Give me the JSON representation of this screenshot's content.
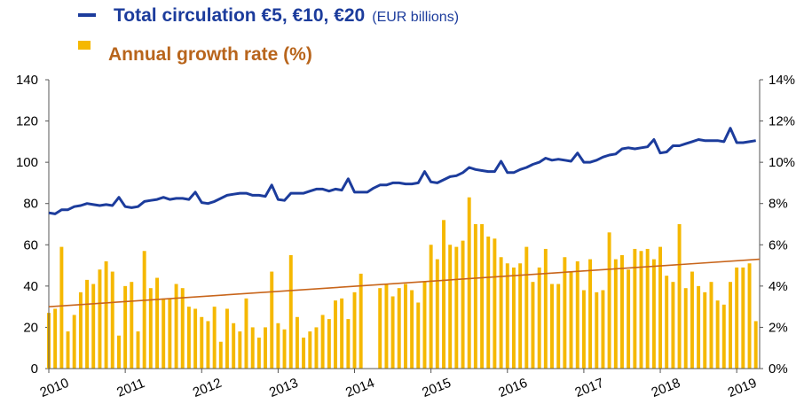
{
  "chart_data": {
    "type": "bar_line",
    "unit_note": "(EUR billions)",
    "x": [
      2010,
      2010.083,
      2010.167,
      2010.25,
      2010.333,
      2010.417,
      2010.5,
      2010.583,
      2010.667,
      2010.75,
      2010.833,
      2010.917,
      2011,
      2011.083,
      2011.167,
      2011.25,
      2011.333,
      2011.417,
      2011.5,
      2011.583,
      2011.667,
      2011.75,
      2011.833,
      2011.917,
      2012,
      2012.083,
      2012.167,
      2012.25,
      2012.333,
      2012.417,
      2012.5,
      2012.583,
      2012.667,
      2012.75,
      2012.833,
      2012.917,
      2013,
      2013.083,
      2013.167,
      2013.25,
      2013.333,
      2013.417,
      2013.5,
      2013.583,
      2013.667,
      2013.75,
      2013.833,
      2013.917,
      2014,
      2014.083,
      2014.167,
      2014.25,
      2014.333,
      2014.417,
      2014.5,
      2014.583,
      2014.667,
      2014.75,
      2014.833,
      2014.917,
      2015,
      2015.083,
      2015.167,
      2015.25,
      2015.333,
      2015.417,
      2015.5,
      2015.583,
      2015.667,
      2015.75,
      2015.833,
      2015.917,
      2016,
      2016.083,
      2016.167,
      2016.25,
      2016.333,
      2016.417,
      2016.5,
      2016.583,
      2016.667,
      2016.75,
      2016.833,
      2016.917,
      2017,
      2017.083,
      2017.167,
      2017.25,
      2017.333,
      2017.417,
      2017.5,
      2017.583,
      2017.667,
      2017.75,
      2017.833,
      2017.917,
      2018,
      2018.083,
      2018.167,
      2018.25,
      2018.333,
      2018.417,
      2018.5,
      2018.583,
      2018.667,
      2018.75,
      2018.833,
      2018.917,
      2019,
      2019.083,
      2019.167,
      2019.25
    ],
    "series": [
      {
        "name": "Total circulation €5, €10, €20",
        "color": "#1c3c9c",
        "kind": "line",
        "axis": "y",
        "values": [
          75.5,
          75,
          77,
          77,
          78.5,
          79,
          80,
          79.5,
          79,
          79.5,
          79,
          83,
          78.5,
          78,
          78.5,
          81,
          81.5,
          82,
          83,
          82,
          82.5,
          82.5,
          82,
          85.5,
          80.5,
          80,
          81,
          82.5,
          84,
          84.5,
          85,
          85,
          84,
          84,
          83.5,
          89,
          82,
          81.5,
          85,
          85,
          85,
          86,
          87,
          87,
          86,
          87,
          86.5,
          92,
          85.5,
          85.5,
          85.5,
          87.5,
          89,
          89,
          90,
          90,
          89.5,
          89.5,
          90,
          95.5,
          90.5,
          90,
          91.5,
          93,
          93.5,
          95,
          97.5,
          96.5,
          96,
          95.5,
          95.5,
          100.5,
          95,
          95,
          96.5,
          97.5,
          99,
          100,
          102,
          101,
          101.5,
          101,
          100.5,
          104.5,
          100,
          100,
          101,
          102.5,
          103.5,
          104,
          106.5,
          107,
          106.5,
          107,
          107.5,
          111,
          104.5,
          105,
          108,
          108,
          109,
          110,
          111,
          110.5,
          110.5,
          110.5,
          110,
          116.5,
          109.5,
          109.5,
          110,
          110.5
        ]
      },
      {
        "name": "Annual growth rate (%)",
        "color": "#f5b800",
        "label_color": "#b8651c",
        "kind": "bar",
        "axis": "y2",
        "values": [
          2.7,
          2.9,
          5.9,
          1.8,
          2.6,
          3.7,
          4.3,
          4.1,
          4.8,
          5.2,
          4.7,
          1.6,
          4.0,
          4.2,
          1.8,
          5.7,
          3.9,
          4.4,
          3.4,
          3.4,
          4.1,
          3.9,
          3.0,
          2.9,
          2.5,
          2.3,
          3.0,
          1.3,
          2.9,
          2.2,
          1.8,
          3.4,
          2.0,
          1.5,
          2.0,
          4.7,
          2.2,
          1.9,
          5.5,
          2.5,
          1.5,
          1.8,
          2.0,
          2.6,
          2.4,
          3.3,
          3.4,
          2.4,
          3.7,
          4.6,
          null,
          null,
          3.9,
          4.1,
          3.5,
          3.9,
          4.1,
          3.8,
          3.2,
          4.2,
          6.0,
          5.3,
          7.2,
          6.0,
          5.9,
          6.2,
          8.3,
          7.0,
          7.0,
          6.4,
          6.3,
          5.4,
          5.1,
          4.9,
          5.1,
          5.9,
          4.2,
          4.9,
          5.8,
          4.1,
          4.1,
          5.4,
          4.7,
          5.2,
          3.8,
          5.3,
          3.7,
          3.8,
          6.6,
          5.3,
          5.5,
          4.8,
          5.8,
          5.7,
          5.8,
          5.3,
          5.9,
          4.5,
          4.2,
          7.0,
          3.9,
          4.7,
          4.0,
          3.7,
          4.2,
          3.3,
          3.1,
          4.2,
          4.9,
          4.9,
          5.1,
          2.3
        ]
      }
    ],
    "trendline": {
      "x": [
        2010,
        2019.3
      ],
      "values": [
        3.0,
        5.3
      ],
      "color": "#c8651b",
      "axis": "y2"
    },
    "xlim": [
      2010,
      2019.3
    ],
    "xticks": [
      2010,
      2011,
      2012,
      2013,
      2014,
      2015,
      2016,
      2017,
      2018,
      2019
    ],
    "ylim": [
      0,
      140
    ],
    "yticks": [
      0,
      20,
      40,
      60,
      80,
      100,
      120,
      140
    ],
    "y2lim": [
      0,
      14
    ],
    "y2ticks": [
      {
        "value": 0,
        "label": "0%"
      },
      {
        "value": 2,
        "label": "2%"
      },
      {
        "value": 4,
        "label": "4%"
      },
      {
        "value": 6,
        "label": "6%"
      },
      {
        "value": 8,
        "label": "8%"
      },
      {
        "value": 10,
        "label": "10%"
      },
      {
        "value": 12,
        "label": "12%"
      },
      {
        "value": 14,
        "label": "14%"
      }
    ],
    "grid": false
  }
}
